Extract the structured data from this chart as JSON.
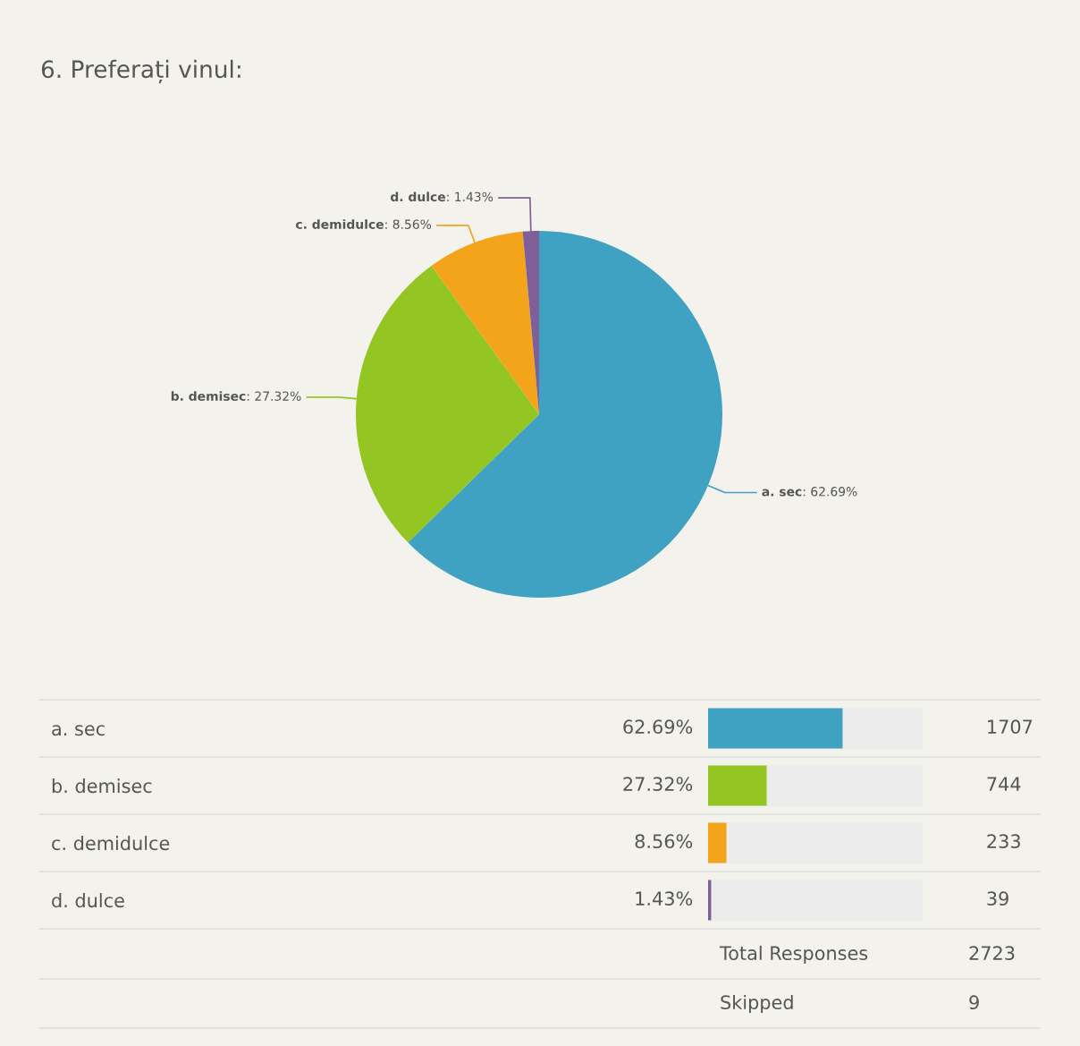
{
  "chart_data": [
    {
      "type": "pie",
      "title": "6. Preferați vinul:",
      "categories": [
        "a. sec",
        "b. demisec",
        "c. demidulce",
        "d. dulce"
      ],
      "values": [
        62.69,
        27.32,
        8.56,
        1.43
      ],
      "value_labels": [
        ": 62.69%",
        ": 27.32%",
        ": 8.56%",
        ": 1.43%"
      ],
      "colors": [
        "#40a2c2",
        "#93c623",
        "#f4a41a",
        "#7f5f97"
      ]
    },
    {
      "type": "bar",
      "orientation": "horizontal",
      "categories": [
        "a. sec",
        "b. demisec",
        "c. demidulce",
        "d. dulce"
      ],
      "values": [
        62.69,
        27.32,
        8.56,
        1.43
      ],
      "value_labels": [
        "62.69%",
        "27.32%",
        "8.56%",
        "1.43%"
      ],
      "colors": [
        "#40a2c2",
        "#93c623",
        "#f4a41a",
        "#7f5f97"
      ],
      "xlim": [
        0,
        100
      ],
      "tick_labels": "y",
      "annotations": [
        "1707",
        "744",
        "233",
        "39",
        "Total Responses",
        "2723",
        "Skipped",
        "9"
      ]
    }
  ]
}
